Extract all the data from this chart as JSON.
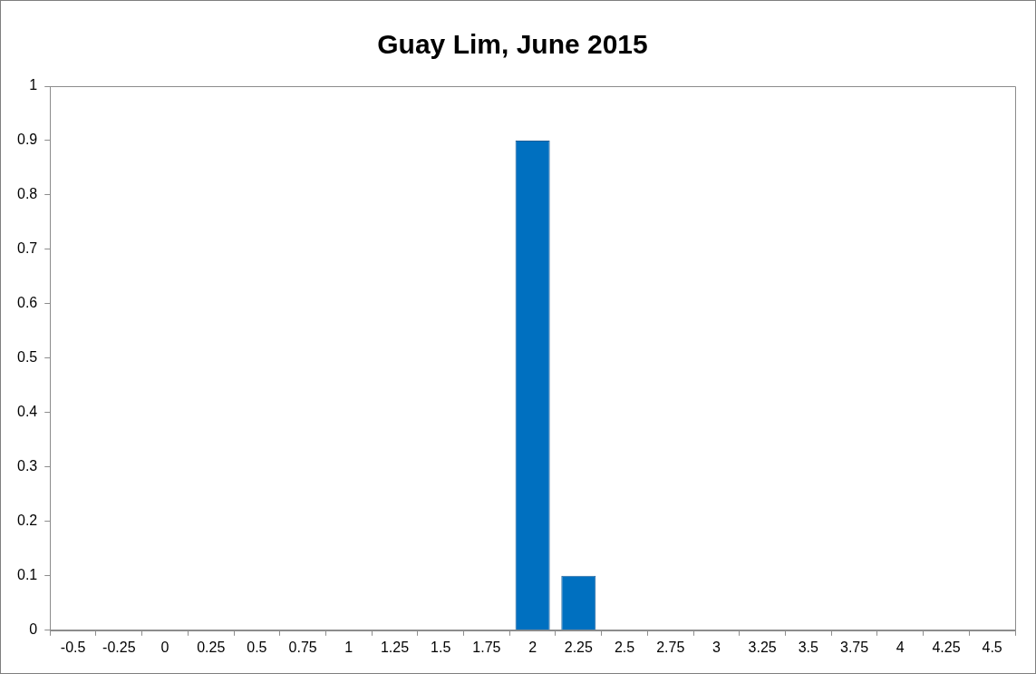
{
  "chart_data": {
    "type": "bar",
    "title": "Guay Lim, June 2015",
    "categories": [
      "-0.5",
      "-0.25",
      "0",
      "0.25",
      "0.5",
      "0.75",
      "1",
      "1.25",
      "1.5",
      "1.75",
      "2",
      "2.25",
      "2.5",
      "2.75",
      "3",
      "3.25",
      "3.5",
      "3.75",
      "4",
      "4.25",
      "4.5"
    ],
    "values": [
      0,
      0,
      0,
      0,
      0,
      0,
      0,
      0,
      0,
      0,
      0.9,
      0.1,
      0,
      0,
      0,
      0,
      0,
      0,
      0,
      0,
      0
    ],
    "color": "#0070c0",
    "ylim": [
      0,
      1
    ],
    "yticks": [
      0,
      0.1,
      0.2,
      0.3,
      0.4,
      0.5,
      0.6,
      0.7,
      0.8,
      0.9,
      1
    ],
    "grid": false,
    "legend": false
  }
}
